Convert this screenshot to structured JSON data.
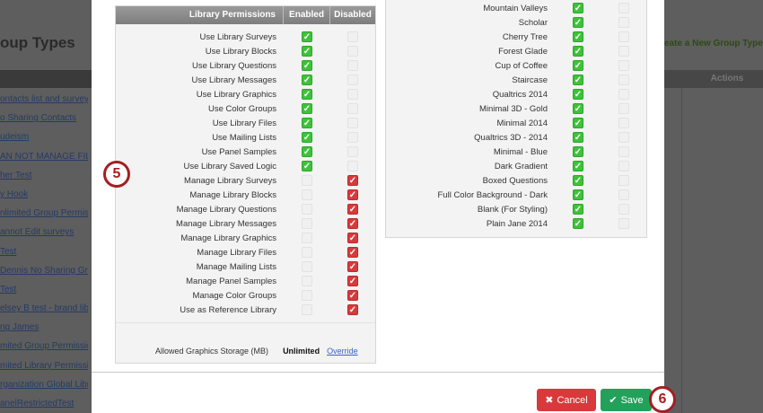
{
  "background": {
    "title": "oup Types",
    "create_link": "eate a New Group Type",
    "actions_header": "Actions",
    "links": [
      "ontacts list and surveys",
      "o Sharing Contacts",
      "udeism",
      "AN NOT MANAGE FILES",
      "her Test",
      "y Hook",
      "nlimited Group Permissio",
      "annot Edit surveys",
      "Test",
      "Dennis No Sharing Group",
      "Test",
      "elsey B test - brand library",
      "ng James",
      "mited Group Permissions",
      "mited Library Permissions",
      "rganization Global Library",
      "anelRestrictedTest"
    ]
  },
  "library_permissions": {
    "header": {
      "label": "Library Permissions",
      "enabled": "Enabled",
      "disabled": "Disabled"
    },
    "rows": [
      {
        "label": "Use Library Surveys",
        "enabled": true
      },
      {
        "label": "Use Library Blocks",
        "enabled": true
      },
      {
        "label": "Use Library Questions",
        "enabled": true
      },
      {
        "label": "Use Library Messages",
        "enabled": true
      },
      {
        "label": "Use Library Graphics",
        "enabled": true
      },
      {
        "label": "Use Color Groups",
        "enabled": true
      },
      {
        "label": "Use Library Files",
        "enabled": true
      },
      {
        "label": "Use Mailing Lists",
        "enabled": true
      },
      {
        "label": "Use Panel Samples",
        "enabled": true
      },
      {
        "label": "Use Library Saved Logic",
        "enabled": true
      },
      {
        "label": "Manage Library Surveys",
        "enabled": false
      },
      {
        "label": "Manage Library Blocks",
        "enabled": false
      },
      {
        "label": "Manage Library Questions",
        "enabled": false
      },
      {
        "label": "Manage Library Messages",
        "enabled": false
      },
      {
        "label": "Manage Library Graphics",
        "enabled": false
      },
      {
        "label": "Manage Library Files",
        "enabled": false
      },
      {
        "label": "Manage Mailing Lists",
        "enabled": false
      },
      {
        "label": "Manage Panel Samples",
        "enabled": false
      },
      {
        "label": "Manage Color Groups",
        "enabled": false
      },
      {
        "label": "Use as Reference Library",
        "enabled": false
      }
    ],
    "storage": {
      "label": "Allowed Graphics Storage (MB)",
      "value": "Unlimited",
      "override": "Override"
    }
  },
  "themes": {
    "rows": [
      {
        "label": "Mountain Valleys",
        "enabled": true
      },
      {
        "label": "Scholar",
        "enabled": true
      },
      {
        "label": "Cherry Tree",
        "enabled": true
      },
      {
        "label": "Forest Glade",
        "enabled": true
      },
      {
        "label": "Cup of Coffee",
        "enabled": true
      },
      {
        "label": "Staircase",
        "enabled": true
      },
      {
        "label": "Qualtrics 2014",
        "enabled": true
      },
      {
        "label": "Minimal 3D - Gold",
        "enabled": true
      },
      {
        "label": "Minimal 2014",
        "enabled": true
      },
      {
        "label": "Qualtrics 3D - 2014",
        "enabled": true
      },
      {
        "label": "Minimal - Blue",
        "enabled": true
      },
      {
        "label": "Dark Gradient",
        "enabled": true
      },
      {
        "label": "Boxed Questions",
        "enabled": true
      },
      {
        "label": "Full Color Background - Dark",
        "enabled": true
      },
      {
        "label": "Blank (For Styling)",
        "enabled": true
      },
      {
        "label": "Plain Jane 2014",
        "enabled": true
      }
    ]
  },
  "footer": {
    "cancel": "Cancel",
    "save": "Save"
  },
  "markers": {
    "step5": "5",
    "step6": "6"
  },
  "colors": {
    "enabled": "#3fc23a",
    "disabled": "#d9393b",
    "cancel": "#d9393b",
    "save": "#23a05a",
    "marker": "#a41e22"
  }
}
